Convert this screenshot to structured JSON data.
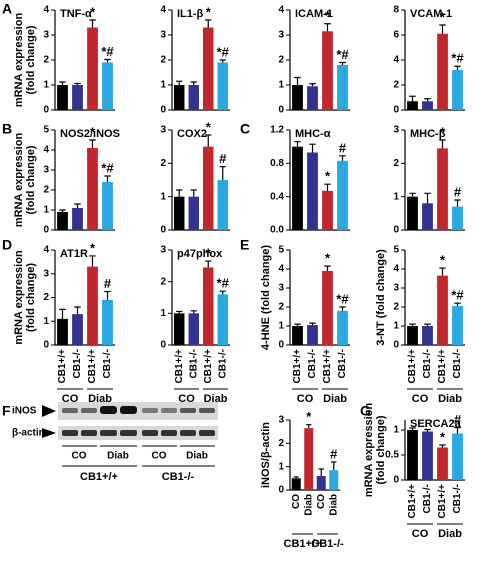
{
  "panels": [
    "A",
    "B",
    "C",
    "D",
    "E",
    "F",
    "G"
  ],
  "blot": {
    "rows": [
      "iNOS",
      "β-actin"
    ],
    "lanes": [
      "CO",
      "Diab",
      "CO",
      "Diab"
    ],
    "groups": [
      "CB1+/+",
      "CB1-/-"
    ]
  },
  "chart_data": [
    {
      "type": "bar",
      "title": "TNF-α",
      "ylabel": [
        "mRNA expression",
        "(fold change)"
      ],
      "values": [
        1.0,
        1.0,
        3.3,
        1.9
      ],
      "errors": [
        0.12,
        0.06,
        0.3,
        0.12
      ],
      "annotations": [
        null,
        null,
        "*",
        "*#"
      ],
      "colors": [
        "#000000",
        "#33338f",
        "#c1272d",
        "#29a9e1"
      ],
      "ylim": [
        0,
        4
      ],
      "yticks": [
        0,
        1,
        2,
        3,
        4
      ]
    },
    {
      "type": "bar",
      "title": "IL1-β",
      "values": [
        1.0,
        1.0,
        3.3,
        1.9
      ],
      "errors": [
        0.15,
        0.12,
        0.3,
        0.1
      ],
      "annotations": [
        null,
        null,
        "*",
        "*#"
      ],
      "colors": [
        "#000000",
        "#33338f",
        "#c1272d",
        "#29a9e1"
      ],
      "ylim": [
        0,
        4
      ],
      "yticks": [
        0,
        1,
        2,
        3,
        4
      ]
    },
    {
      "type": "bar",
      "title": "ICAM-1",
      "values": [
        1.0,
        0.95,
        3.15,
        1.8
      ],
      "errors": [
        0.3,
        0.1,
        0.3,
        0.1
      ],
      "annotations": [
        null,
        null,
        "*",
        "*#"
      ],
      "colors": [
        "#000000",
        "#33338f",
        "#c1272d",
        "#29a9e1"
      ],
      "ylim": [
        0,
        4
      ],
      "yticks": [
        0,
        1,
        2,
        3,
        4
      ]
    },
    {
      "type": "bar",
      "title": "VCAM-1",
      "values": [
        0.7,
        0.7,
        6.1,
        3.2
      ],
      "errors": [
        0.4,
        0.2,
        0.7,
        0.3
      ],
      "annotations": [
        null,
        null,
        "*",
        "*#"
      ],
      "colors": [
        "#000000",
        "#33338f",
        "#c1272d",
        "#29a9e1"
      ],
      "ylim": [
        0,
        8
      ],
      "yticks": [
        0,
        2,
        4,
        6,
        8
      ]
    },
    {
      "type": "bar",
      "title": "NOS2/iNOS",
      "ylabel": [
        "mRNA expression",
        "(fold change)"
      ],
      "values": [
        0.9,
        1.1,
        4.1,
        2.4
      ],
      "errors": [
        0.1,
        0.2,
        0.4,
        0.3
      ],
      "annotations": [
        null,
        null,
        "*",
        "*#"
      ],
      "colors": [
        "#000000",
        "#33338f",
        "#c1272d",
        "#29a9e1"
      ],
      "ylim": [
        0,
        5
      ],
      "yticks": [
        0,
        1,
        2,
        3,
        4,
        5
      ]
    },
    {
      "type": "bar",
      "title": "COX2",
      "values": [
        1.0,
        1.0,
        2.5,
        1.5
      ],
      "errors": [
        0.2,
        0.2,
        0.35,
        0.4
      ],
      "annotations": [
        null,
        null,
        "*",
        "#"
      ],
      "colors": [
        "#000000",
        "#33338f",
        "#c1272d",
        "#29a9e1"
      ],
      "ylim": [
        0,
        3
      ],
      "yticks": [
        0,
        1,
        2,
        3
      ]
    },
    {
      "type": "bar",
      "title": "MHC-α",
      "values": [
        1.0,
        0.93,
        0.47,
        0.83
      ],
      "errors": [
        0.06,
        0.1,
        0.08,
        0.06
      ],
      "annotations": [
        null,
        null,
        "*",
        "#"
      ],
      "colors": [
        "#000000",
        "#33338f",
        "#c1272d",
        "#29a9e1"
      ],
      "ylim": [
        0,
        1.2
      ],
      "yticks": [
        {
          "value": 0,
          "label": "0.0"
        },
        0.4,
        0.8,
        1.2
      ]
    },
    {
      "type": "bar",
      "title": "MHC-β",
      "values": [
        1.0,
        0.8,
        2.45,
        0.7
      ],
      "errors": [
        0.1,
        0.3,
        0.25,
        0.2
      ],
      "annotations": [
        null,
        null,
        "*",
        "#"
      ],
      "colors": [
        "#000000",
        "#33338f",
        "#c1272d",
        "#29a9e1"
      ],
      "ylim": [
        0,
        3
      ],
      "yticks": [
        0,
        1,
        2,
        3
      ]
    },
    {
      "type": "bar",
      "title": "AT1R",
      "ylabel": [
        "mRNA expression",
        "(fold change)"
      ],
      "values": [
        1.1,
        1.3,
        3.3,
        1.9
      ],
      "errors": [
        0.4,
        0.3,
        0.45,
        0.35
      ],
      "annotations": [
        null,
        null,
        "*",
        "#"
      ],
      "colors": [
        "#000000",
        "#33338f",
        "#c1272d",
        "#29a9e1"
      ],
      "ylim": [
        0,
        4
      ],
      "yticks": [
        0,
        1,
        2,
        3,
        4
      ],
      "categories": [
        "CB1+/+",
        "CB1-/-",
        "CB1+/+",
        "CB1-/-"
      ],
      "groups": [
        "CO",
        "Diab"
      ]
    },
    {
      "type": "bar",
      "title": "p47phox",
      "values": [
        1.0,
        1.0,
        2.45,
        1.6
      ],
      "errors": [
        0.06,
        0.08,
        0.2,
        0.1
      ],
      "annotations": [
        null,
        null,
        "*",
        "*#"
      ],
      "colors": [
        "#000000",
        "#33338f",
        "#c1272d",
        "#29a9e1"
      ],
      "ylim": [
        0,
        3
      ],
      "yticks": [
        0,
        1,
        2,
        3
      ],
      "categories": [
        "CB1+/+",
        "CB1-/-",
        "CB1+/+",
        "CB1-/-"
      ],
      "groups": [
        "CO",
        "Diab"
      ]
    },
    {
      "type": "bar",
      "ylabel": [
        "4-HNE (fold change)"
      ],
      "values": [
        1.0,
        1.05,
        3.9,
        1.8
      ],
      "errors": [
        0.1,
        0.1,
        0.25,
        0.2
      ],
      "annotations": [
        null,
        null,
        "*",
        "*#"
      ],
      "colors": [
        "#000000",
        "#33338f",
        "#c1272d",
        "#29a9e1"
      ],
      "ylim": [
        0,
        5
      ],
      "yticks": [
        0,
        1,
        2,
        3,
        4,
        5
      ],
      "categories": [
        "CB1+/+",
        "CB1-/-",
        "CB1+/+",
        "CB1-/-"
      ],
      "groups": [
        "CO",
        "Diab"
      ]
    },
    {
      "type": "bar",
      "ylabel": [
        "3-NT (fold change)"
      ],
      "values": [
        1.0,
        1.0,
        3.65,
        2.05
      ],
      "errors": [
        0.1,
        0.1,
        0.4,
        0.15
      ],
      "annotations": [
        null,
        null,
        "*",
        "*#"
      ],
      "colors": [
        "#000000",
        "#33338f",
        "#c1272d",
        "#29a9e1"
      ],
      "ylim": [
        0,
        5
      ],
      "yticks": [
        0,
        1,
        2,
        3,
        4,
        5
      ],
      "categories": [
        "CB1+/+",
        "CB1-/-",
        "CB1+/+",
        "CB1-/-"
      ],
      "groups": [
        "CO",
        "Diab"
      ]
    },
    {
      "type": "bar",
      "ylabel": [
        "iNOS/β-actin"
      ],
      "values": [
        0.5,
        2.65,
        0.6,
        0.85
      ],
      "errors": [
        0.06,
        0.15,
        0.3,
        0.35
      ],
      "annotations": [
        null,
        "*",
        null,
        "#"
      ],
      "colors": [
        "#000000",
        "#c1272d",
        "#33338f",
        "#29a9e1"
      ],
      "ylim": [
        0,
        3
      ],
      "yticks": [
        0,
        1,
        2,
        3
      ],
      "categories": [
        "CO",
        "Diab",
        "CO",
        "Diab"
      ],
      "groups": [
        "CB1+/+",
        "CB1-/-"
      ]
    },
    {
      "type": "bar",
      "title": "SERCA2a",
      "ylabel": [
        "mRNA expression",
        "(fold change)"
      ],
      "values": [
        1.0,
        0.97,
        0.65,
        0.93
      ],
      "errors": [
        0.04,
        0.04,
        0.05,
        0.12
      ],
      "annotations": [
        null,
        null,
        "*",
        "#"
      ],
      "colors": [
        "#000000",
        "#33338f",
        "#c1272d",
        "#29a9e1"
      ],
      "ylim": [
        0,
        1.2
      ],
      "yticks": [
        0,
        0.5,
        1
      ],
      "categories": [
        "CB1+/+",
        "CB1-/-",
        "CB1+/+",
        "CB1-/-"
      ],
      "groups": [
        "CO",
        "Diab"
      ]
    }
  ]
}
